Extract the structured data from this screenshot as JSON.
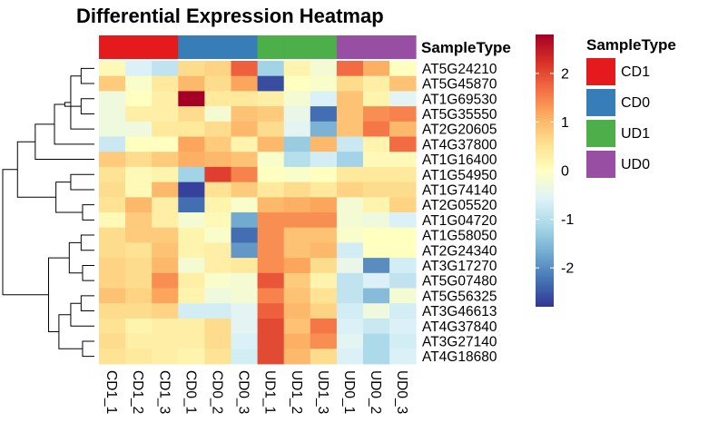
{
  "chart_data": {
    "type": "heatmap",
    "title": "Differential Expression Heatmap",
    "annotation_label": "SampleType",
    "columns": [
      "CD1_1",
      "CD1_2",
      "CD1_3",
      "CD0_1",
      "CD0_2",
      "CD0_3",
      "UD1_1",
      "UD1_2",
      "UD1_3",
      "UD0_1",
      "UD0_2",
      "UD0_3"
    ],
    "column_groups": [
      "CD1",
      "CD1",
      "CD1",
      "CD0",
      "CD0",
      "CD0",
      "UD1",
      "UD1",
      "UD1",
      "UD0",
      "UD0",
      "UD0"
    ],
    "rows": [
      "AT5G24210",
      "AT5G45870",
      "AT1G69530",
      "AT5G35550",
      "AT2G20605",
      "AT4G37800",
      "AT1G16400",
      "AT1G54950",
      "AT1G74140",
      "AT2G05520",
      "AT1G04720",
      "AT1G58050",
      "AT2G24340",
      "AT3G17270",
      "AT5G07480",
      "AT5G56325",
      "AT3G46613",
      "AT4G37840",
      "AT3G27140",
      "AT4G18680"
    ],
    "values": [
      [
        0.1,
        -0.6,
        -0.9,
        0.6,
        0.7,
        1.8,
        -1.2,
        0.2,
        -0.2,
        1.7,
        1.1,
        0.0
      ],
      [
        0.8,
        -0.1,
        0.4,
        1.0,
        0.6,
        1.2,
        -2.6,
        0.0,
        -0.1,
        0.6,
        0.3,
        0.9
      ],
      [
        -0.3,
        0.0,
        0.3,
        2.9,
        0.4,
        0.4,
        0.3,
        -0.2,
        -0.6,
        0.9,
        0.2,
        -0.5
      ],
      [
        -0.3,
        0.3,
        0.3,
        0.6,
        -0.2,
        0.9,
        0.8,
        -0.4,
        -2.3,
        0.9,
        1.4,
        1.5
      ],
      [
        -0.3,
        -0.3,
        0.4,
        0.4,
        0.6,
        1.0,
        0.6,
        -0.5,
        -1.6,
        0.9,
        1.6,
        1.0
      ],
      [
        -0.8,
        0.0,
        0.0,
        1.2,
        0.8,
        0.2,
        1.0,
        -1.3,
        1.0,
        -0.8,
        0.2,
        1.7
      ],
      [
        0.8,
        0.6,
        0.8,
        1.1,
        1.0,
        0.9,
        -0.1,
        -1.0,
        -0.7,
        -1.2,
        0.1,
        0.1
      ],
      [
        0.5,
        0.1,
        0.2,
        -1.2,
        2.1,
        1.5,
        0.0,
        -0.1,
        0.0,
        0.4,
        0.4,
        0.4
      ],
      [
        0.6,
        0.1,
        1.0,
        -2.7,
        0.5,
        0.8,
        0.4,
        0.6,
        0.4,
        0.7,
        0.6,
        0.6
      ],
      [
        0.5,
        1.0,
        0.3,
        -2.3,
        0.2,
        -0.1,
        1.0,
        1.1,
        1.2,
        -0.2,
        0.2,
        0.7
      ],
      [
        0.1,
        0.8,
        0.3,
        -0.2,
        0.1,
        -1.7,
        1.4,
        1.4,
        1.4,
        -0.2,
        -0.3,
        -0.6
      ],
      [
        0.6,
        0.8,
        0.8,
        0.2,
        -0.1,
        -2.3,
        1.4,
        0.9,
        0.9,
        -0.1,
        0.0,
        0.0
      ],
      [
        0.6,
        0.5,
        0.9,
        0.2,
        0.3,
        -1.9,
        1.4,
        0.9,
        1.0,
        -0.7,
        0.0,
        0.0
      ],
      [
        0.7,
        0.6,
        1.0,
        -0.2,
        0.3,
        0.4,
        1.4,
        1.2,
        0.6,
        -0.4,
        -2.0,
        -0.7
      ],
      [
        0.7,
        0.6,
        1.4,
        0.3,
        -0.1,
        -0.2,
        1.9,
        0.8,
        0.2,
        -0.9,
        -0.6,
        -0.9
      ],
      [
        0.9,
        0.7,
        1.2,
        0.2,
        -0.3,
        -0.2,
        1.5,
        0.9,
        0.5,
        -0.9,
        -1.5,
        -0.2
      ],
      [
        0.6,
        0.6,
        0.7,
        -0.7,
        -0.7,
        -0.5,
        1.8,
        1.0,
        0.7,
        -0.7,
        -0.3,
        -0.7
      ],
      [
        0.5,
        0.2,
        0.3,
        0.3,
        0.6,
        -0.5,
        2.0,
        0.9,
        1.6,
        -0.6,
        -0.8,
        -0.6
      ],
      [
        0.6,
        0.3,
        0.3,
        0.3,
        0.6,
        -0.6,
        2.0,
        1.1,
        1.4,
        -0.5,
        -1.1,
        -0.7
      ],
      [
        0.5,
        0.4,
        0.3,
        0.2,
        0.5,
        -0.7,
        2.0,
        1.0,
        0.6,
        -0.6,
        -1.1,
        -0.6
      ]
    ],
    "colorbar": {
      "min": -2.8,
      "max": 2.8,
      "ticks": [
        -2,
        -1,
        0,
        1,
        2
      ]
    },
    "legend": {
      "title": "SampleType",
      "entries": [
        {
          "label": "CD1",
          "color": "#E41A1C"
        },
        {
          "label": "CD0",
          "color": "#377EB8"
        },
        {
          "label": "UD1",
          "color": "#4DAF4A"
        },
        {
          "label": "UD0",
          "color": "#984EA3"
        }
      ]
    },
    "palette": [
      "#313695",
      "#4575B4",
      "#74ADD1",
      "#ABD9E9",
      "#E0F3F8",
      "#FFFFBF",
      "#FEE090",
      "#FDAE61",
      "#F46D43",
      "#D73027",
      "#A50026"
    ],
    "row_dendrogram": [
      [
        0,
        1,
        0.9
      ],
      [
        2,
        3,
        0.9
      ],
      [
        20,
        4,
        1.6
      ],
      [
        21,
        22,
        2.0
      ],
      [
        23,
        5,
        2.7
      ],
      [
        7,
        8,
        1.6
      ],
      [
        9,
        10,
        0.8
      ],
      [
        6,
        24,
        4.0
      ],
      [
        25,
        26,
        2.6
      ],
      [
        27,
        28,
        5.2
      ],
      [
        11,
        12,
        0.9
      ],
      [
        13,
        14,
        0.8
      ],
      [
        30,
        31,
        1.7
      ],
      [
        15,
        16,
        0.9
      ],
      [
        33,
        17,
        1.6
      ],
      [
        18,
        19,
        0.8
      ],
      [
        34,
        35,
        2.4
      ],
      [
        32,
        36,
        3.1
      ],
      [
        29,
        37,
        6.2
      ]
    ]
  }
}
